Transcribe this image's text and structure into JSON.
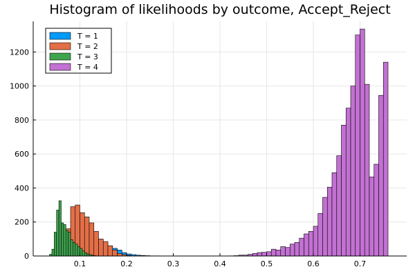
{
  "chart_data": {
    "type": "bar",
    "title": "Histogram of likelihoods by outcome, Accept_Reject",
    "xlabel": "",
    "ylabel": "",
    "xlim": [
      0.0,
      0.8
    ],
    "ylim": [
      0,
      1380
    ],
    "x_ticks": [
      0.1,
      0.2,
      0.3,
      0.4,
      0.5,
      0.6,
      0.7
    ],
    "x_tick_labels": [
      "0.1",
      "0.2",
      "0.3",
      "0.4",
      "0.5",
      "0.6",
      "0.7"
    ],
    "y_ticks": [
      0,
      200,
      400,
      600,
      800,
      1000,
      1200
    ],
    "y_tick_labels": [
      "0",
      "200",
      "400",
      "600",
      "800",
      "1000",
      "1200"
    ],
    "grid": true,
    "legend_position": "top-left",
    "series": [
      {
        "name": "T = 1",
        "color": "#009AFA",
        "bin_width": 0.01,
        "bin_starts": [
          0.05,
          0.06,
          0.07,
          0.08,
          0.09,
          0.1,
          0.11,
          0.12,
          0.13,
          0.14,
          0.15,
          0.16,
          0.17,
          0.18,
          0.19,
          0.2,
          0.21,
          0.22,
          0.23,
          0.24,
          0.25,
          0.26
        ],
        "values": [
          5,
          30,
          80,
          120,
          150,
          140,
          130,
          115,
          100,
          95,
          75,
          60,
          45,
          35,
          20,
          12,
          8,
          5,
          3,
          2,
          1,
          1
        ]
      },
      {
        "name": "T = 2",
        "color": "#E36F47",
        "bin_width": 0.01,
        "bin_starts": [
          0.06,
          0.07,
          0.08,
          0.09,
          0.1,
          0.11,
          0.12,
          0.13,
          0.14,
          0.15,
          0.16,
          0.17,
          0.18,
          0.19,
          0.2,
          0.21
        ],
        "values": [
          60,
          160,
          290,
          300,
          255,
          230,
          195,
          145,
          100,
          85,
          60,
          35,
          15,
          8,
          3,
          1
        ]
      },
      {
        "name": "T = 3",
        "color": "#3EA44E",
        "bin_width": 0.005,
        "bin_starts": [
          0.035,
          0.04,
          0.045,
          0.05,
          0.055,
          0.06,
          0.065,
          0.07,
          0.075,
          0.08,
          0.085,
          0.09,
          0.095,
          0.1,
          0.105,
          0.11,
          0.115,
          0.12,
          0.125,
          0.13
        ],
        "values": [
          10,
          40,
          140,
          270,
          325,
          195,
          185,
          150,
          140,
          95,
          80,
          70,
          55,
          45,
          30,
          20,
          12,
          8,
          4,
          2
        ]
      },
      {
        "name": "T = 4",
        "color": "#C271D2",
        "bin_width": 0.01,
        "bin_starts": [
          0.42,
          0.43,
          0.44,
          0.45,
          0.46,
          0.47,
          0.48,
          0.49,
          0.5,
          0.51,
          0.52,
          0.53,
          0.54,
          0.55,
          0.56,
          0.57,
          0.58,
          0.59,
          0.6,
          0.61,
          0.62,
          0.63,
          0.64,
          0.65,
          0.66,
          0.67,
          0.68,
          0.69,
          0.7,
          0.71,
          0.72,
          0.73,
          0.74,
          0.75
        ],
        "values": [
          1,
          2,
          5,
          5,
          10,
          15,
          20,
          22,
          25,
          40,
          35,
          55,
          50,
          70,
          80,
          105,
          130,
          145,
          175,
          250,
          345,
          405,
          490,
          590,
          770,
          870,
          1000,
          1300,
          1335,
          1010,
          465,
          540,
          945,
          1140
        ]
      }
    ]
  }
}
